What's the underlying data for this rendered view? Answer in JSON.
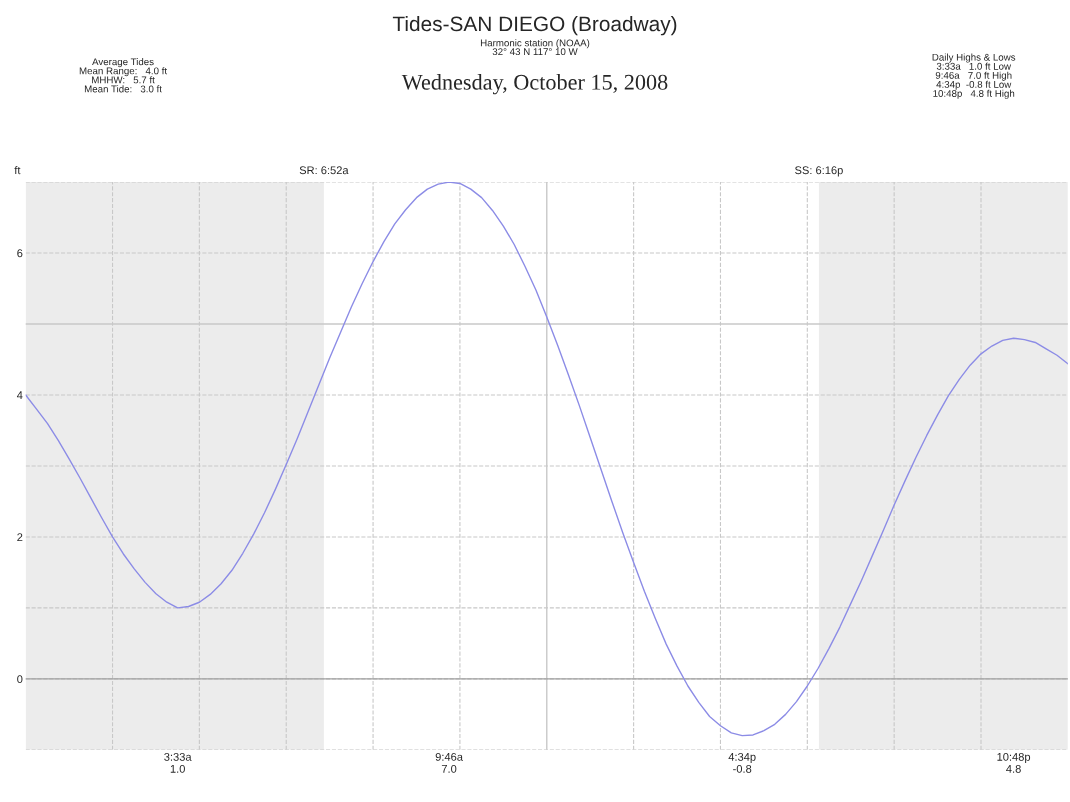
{
  "chart_data": {
    "type": "line",
    "title": "Tides-SAN DIEGO (Broadway)",
    "subtitle": "Harmonic station (NOAA)\n32° 43 N 117° 10 W",
    "ylabel": "ft",
    "annotations": [
      "Wednesday, October 15, 2008",
      "Average Tides\nMean Range:   4.0 ft\nMHHW:   5.7 ft\nMean Tide:   3.0 ft",
      "Daily Highs & Lows\n3:33a   1.0 ft Low\n9:46a   7.0 ft High\n4:34p  -0.8 ft Low\n10:48p   4.8 ft High",
      "SR: 6:52a",
      "SS: 6:16p"
    ],
    "categories": [
      null,
      null,
      null,
      null,
      null,
      null,
      null,
      null,
      null,
      null,
      null,
      null,
      null,
      null,
      "3:33a\n1.0",
      null,
      null,
      null,
      null,
      null,
      null,
      null,
      null,
      null,
      null,
      null,
      null,
      null,
      null,
      null,
      null,
      null,
      null,
      null,
      null,
      null,
      null,
      null,
      null,
      "9:46a\n7.0",
      null,
      null,
      null,
      null,
      null,
      null,
      null,
      null,
      null,
      null,
      null,
      null,
      null,
      null,
      null,
      null,
      null,
      null,
      null,
      null,
      null,
      null,
      null,
      null,
      null,
      null,
      "4:34p\n-0.8",
      null,
      null,
      null,
      null,
      null,
      null,
      null,
      null,
      null,
      null,
      null,
      null,
      null,
      null,
      null,
      null,
      null,
      null,
      null,
      null,
      null,
      null,
      null,
      null,
      "10:48p\n4.8",
      null,
      null,
      null,
      null,
      null
    ],
    "series": [
      {
        "color": "#8c8ce6",
        "values": [
          4.0,
          3.8,
          3.6,
          3.36,
          3.1,
          2.83,
          2.55,
          2.27,
          2.0,
          1.76,
          1.55,
          1.36,
          1.2,
          1.08,
          1.0,
          1.02,
          1.08,
          1.19,
          1.34,
          1.53,
          1.77,
          2.04,
          2.34,
          2.67,
          3.02,
          3.38,
          3.76,
          4.14,
          4.52,
          4.88,
          5.24,
          5.57,
          5.88,
          6.16,
          6.41,
          6.61,
          6.78,
          6.9,
          6.97,
          7.0,
          6.98,
          6.9,
          6.78,
          6.6,
          6.38,
          6.12,
          5.81,
          5.48,
          5.1,
          4.7,
          4.28,
          3.85,
          3.4,
          2.95,
          2.5,
          2.06,
          1.64,
          1.23,
          0.85,
          0.49,
          0.18,
          -0.1,
          -0.33,
          -0.53,
          -0.66,
          -0.76,
          -0.8,
          -0.79,
          -0.73,
          -0.64,
          -0.5,
          -0.32,
          -0.1,
          0.15,
          0.43,
          0.73,
          1.06,
          1.39,
          1.74,
          2.09,
          2.45,
          2.79,
          3.12,
          3.43,
          3.72,
          3.99,
          4.22,
          4.42,
          4.58,
          4.69,
          4.77,
          4.8,
          4.78,
          4.74,
          4.65,
          4.56,
          4.44
        ]
      }
    ],
    "ylim": [
      -1,
      7
    ],
    "yticks": [
      {
        "value": -1,
        "label": null
      },
      0,
      {
        "value": 1,
        "label": null
      },
      2,
      {
        "value": 3,
        "label": null
      },
      4,
      6,
      {
        "value": 7,
        "label": null
      }
    ],
    "ref_lines": [
      {
        "axis": "y",
        "value": 0,
        "color": "#a0a0a0",
        "line_style": "solid"
      },
      {
        "axis": "y",
        "value": 5,
        "color": "#c8c8c8",
        "line_style": "solid"
      }
    ],
    "grid": "y",
    "marker": "none",
    "line_style": "solid"
  }
}
